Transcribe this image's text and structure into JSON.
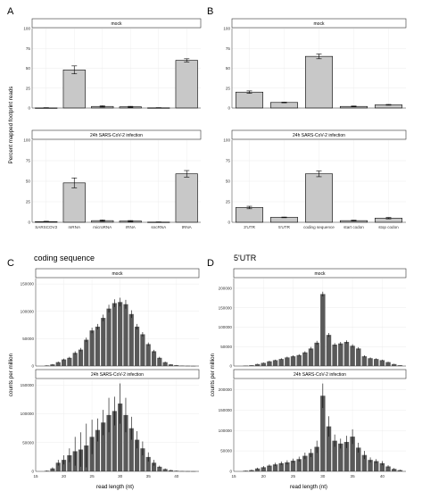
{
  "chart_data": [
    {
      "panel": "A",
      "type": "bar",
      "title": "",
      "ylabel": "Percent mapped footprint reads",
      "ylim": [
        0,
        100
      ],
      "yticks": [
        0,
        25,
        50,
        75,
        100
      ],
      "categories": [
        "SARSCOV2",
        "mRNA",
        "microRNA",
        "rRNA",
        "sncRNA",
        "tRNA"
      ],
      "facets": [
        {
          "strip": "mock",
          "values": [
            0.2,
            48,
            2,
            1.5,
            0.3,
            60
          ],
          "errors": [
            0.3,
            5,
            0.8,
            0.6,
            0.2,
            2
          ]
        },
        {
          "strip": "24h SARS-CoV-2 infection",
          "values": [
            0.8,
            48,
            2,
            1.5,
            0.3,
            59
          ],
          "errors": [
            0.4,
            6,
            0.8,
            0.6,
            0.2,
            4
          ]
        }
      ]
    },
    {
      "panel": "B",
      "type": "bar",
      "title": "",
      "ylabel": "",
      "ylim": [
        0,
        100
      ],
      "yticks": [
        0,
        25,
        50,
        75,
        100
      ],
      "categories": [
        "3'UTR",
        "5'UTR",
        "coding sequence",
        "start codon",
        "stop codon"
      ],
      "facets": [
        {
          "strip": "mock",
          "values": [
            20,
            7,
            65,
            2,
            4
          ],
          "errors": [
            1.5,
            0.4,
            3,
            0.5,
            0.5
          ]
        },
        {
          "strip": "24h SARS-CoV-2 infection",
          "values": [
            18,
            6,
            59,
            2,
            5
          ],
          "errors": [
            1.5,
            0.4,
            3.5,
            0.5,
            0.8
          ]
        }
      ]
    },
    {
      "panel": "C",
      "type": "bar",
      "title": "coding sequence",
      "xlabel": "read length (nt)",
      "ylabel": "counts per million",
      "xlim": [
        15,
        44
      ],
      "xticks": [
        15,
        20,
        25,
        30,
        35,
        40
      ],
      "ylim": [
        0,
        160000
      ],
      "yticks": [
        0,
        50000,
        100000,
        150000
      ],
      "x": [
        17,
        18,
        19,
        20,
        21,
        22,
        23,
        24,
        25,
        26,
        27,
        28,
        29,
        30,
        31,
        32,
        33,
        34,
        35,
        36,
        37,
        38,
        39,
        40,
        41,
        42,
        43
      ],
      "facets": [
        {
          "strip": "mock",
          "values": [
            1000,
            3000,
            7000,
            12000,
            15000,
            24000,
            30000,
            48000,
            65000,
            72000,
            88000,
            105000,
            115000,
            117000,
            113000,
            95000,
            72000,
            58000,
            40000,
            27000,
            15000,
            7000,
            3000,
            1500,
            700,
            400,
            200
          ],
          "errors": [
            300,
            600,
            1000,
            1500,
            2000,
            3000,
            3000,
            4000,
            5000,
            5000,
            6000,
            7000,
            7000,
            8000,
            8000,
            7000,
            5000,
            4000,
            3000,
            2500,
            2000,
            1000,
            500,
            300,
            200,
            100,
            100
          ]
        },
        {
          "strip": "24h SARS-CoV-2 infection",
          "values": [
            1000,
            5000,
            15000,
            20000,
            28000,
            35000,
            38000,
            45000,
            60000,
            72000,
            85000,
            98000,
            105000,
            118000,
            98000,
            75000,
            55000,
            40000,
            25000,
            15000,
            8000,
            4000,
            2000,
            1000,
            500,
            300,
            200
          ],
          "errors": [
            500,
            2000,
            5000,
            8000,
            12000,
            25000,
            30000,
            38000,
            30000,
            20000,
            22000,
            30000,
            25000,
            35000,
            30000,
            20000,
            15000,
            12000,
            8000,
            5000,
            2000,
            1000,
            600,
            300,
            200,
            100,
            100
          ]
        }
      ]
    },
    {
      "panel": "D",
      "type": "bar",
      "title": "5'UTR",
      "xlabel": "read length (nt)",
      "ylabel": "counts per million",
      "xlim": [
        15,
        44
      ],
      "xticks": [
        15,
        20,
        25,
        30,
        35,
        40
      ],
      "ylim": [
        0,
        225000
      ],
      "yticks": [
        0,
        50000,
        100000,
        150000,
        200000
      ],
      "x": [
        17,
        18,
        19,
        20,
        21,
        22,
        23,
        24,
        25,
        26,
        27,
        28,
        29,
        30,
        31,
        32,
        33,
        34,
        35,
        36,
        37,
        38,
        39,
        40,
        41,
        42,
        43
      ],
      "facets": [
        {
          "strip": "mock",
          "values": [
            1000,
            2000,
            5000,
            8000,
            12000,
            15000,
            18000,
            22000,
            25000,
            28000,
            35000,
            45000,
            60000,
            185000,
            80000,
            55000,
            58000,
            62000,
            52000,
            45000,
            25000,
            20000,
            18000,
            15000,
            10000,
            5000,
            2000
          ],
          "errors": [
            200,
            400,
            800,
            1000,
            1500,
            1500,
            2000,
            2000,
            2500,
            2500,
            3000,
            4000,
            5000,
            6000,
            5000,
            4000,
            4000,
            4000,
            4000,
            3500,
            2500,
            2000,
            2000,
            1500,
            1000,
            800,
            300
          ]
        },
        {
          "strip": "24h SARS-CoV-2 infection",
          "values": [
            1500,
            3000,
            7000,
            10000,
            14000,
            17000,
            20000,
            22000,
            26000,
            30000,
            38000,
            45000,
            60000,
            185000,
            110000,
            75000,
            68000,
            72000,
            85000,
            58000,
            40000,
            28000,
            25000,
            20000,
            12000,
            6000,
            3000
          ],
          "errors": [
            500,
            1000,
            2000,
            3000,
            3000,
            4000,
            4000,
            5000,
            5000,
            6000,
            8000,
            10000,
            15000,
            30000,
            25000,
            15000,
            12000,
            15000,
            18000,
            12000,
            10000,
            6000,
            5000,
            5000,
            3000,
            2000,
            1000
          ]
        }
      ]
    }
  ],
  "panel_letters": {
    "a": "A",
    "b": "B",
    "c": "C",
    "d": "D"
  },
  "titles": {
    "c": "coding sequence",
    "d": "5'UTR"
  },
  "strips": {
    "mock": "mock",
    "infection": "24h SARS-CoV-2 infection"
  },
  "axis_labels": {
    "ab_y": "Percent mapped footprint reads",
    "cd_y": "counts per million",
    "cd_x": "read length (nt)"
  },
  "colors": {
    "bar_ab": "#c8c8c8",
    "bar_cd": "#595959",
    "grid": "#ebebeb",
    "strip_bg": "#ffffff",
    "strip_border": "#333333",
    "error": "#000000"
  }
}
